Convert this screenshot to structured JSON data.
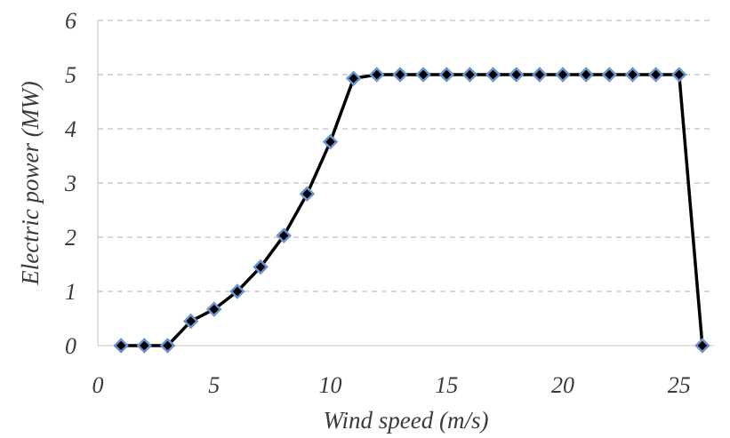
{
  "chart_data": {
    "type": "line",
    "xlabel": "Wind speed (m/s)",
    "ylabel": "Electric power (MW)",
    "xlim": [
      0,
      26.5
    ],
    "ylim": [
      0,
      6
    ],
    "xticks": [
      0,
      5,
      10,
      15,
      20,
      25
    ],
    "yticks": [
      0,
      1,
      2,
      3,
      4,
      5,
      6
    ],
    "grid": "horizontal dashed",
    "legend": "none",
    "line_color": "#000000",
    "marker": "diamond",
    "marker_fill": "#000000",
    "marker_edge": "#6a93cf",
    "series": [
      {
        "x": [
          1,
          2,
          3,
          4,
          5,
          6,
          7,
          8,
          9,
          10,
          11,
          12,
          13,
          14,
          15,
          16,
          17,
          18,
          19,
          20,
          21,
          22,
          23,
          24,
          25,
          26
        ],
        "values": [
          0,
          0,
          0,
          0.45,
          0.67,
          1.0,
          1.45,
          2.03,
          2.8,
          3.76,
          4.93,
          5.0,
          5.0,
          5.0,
          5.0,
          5.0,
          5.0,
          5.0,
          5.0,
          5.0,
          5.0,
          5.0,
          5.0,
          5.0,
          5.0,
          0
        ]
      }
    ]
  }
}
